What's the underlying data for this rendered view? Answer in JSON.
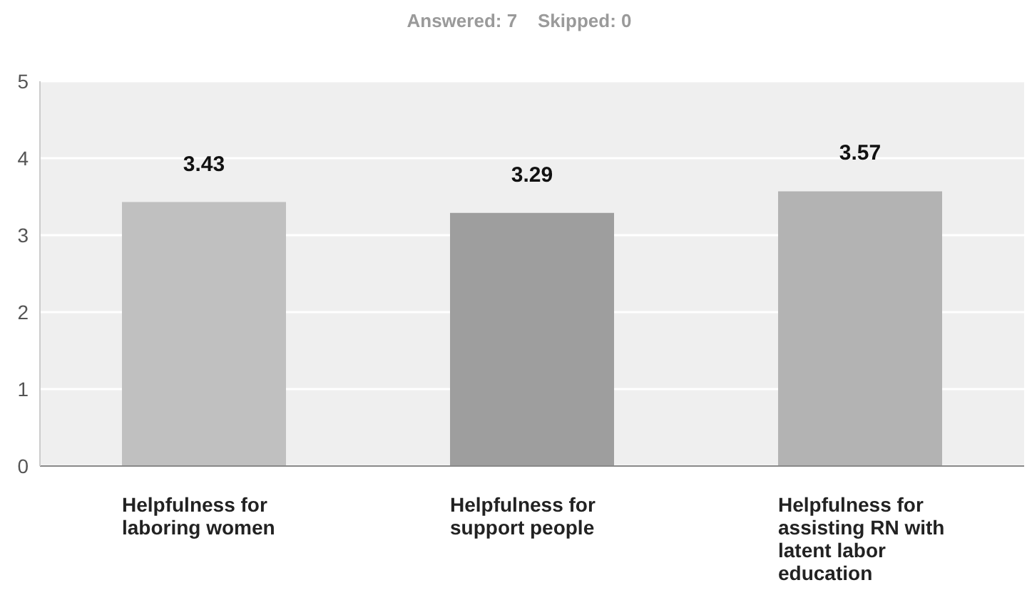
{
  "chart_data": {
    "type": "bar",
    "subtitle": "Answered: 7    Skipped: 0",
    "categories": [
      "Helpfulness for laboring women",
      "Helpfulness for support people",
      "Helpfulness for assisting RN with latent labor education"
    ],
    "values": [
      3.43,
      3.29,
      3.57
    ],
    "colors": [
      "#c0c0c0",
      "#9e9e9e",
      "#b3b3b3"
    ],
    "ylim": [
      0,
      5
    ],
    "yticks": [
      0,
      1,
      2,
      3,
      4,
      5
    ],
    "grid": "y",
    "data_labels": true
  }
}
